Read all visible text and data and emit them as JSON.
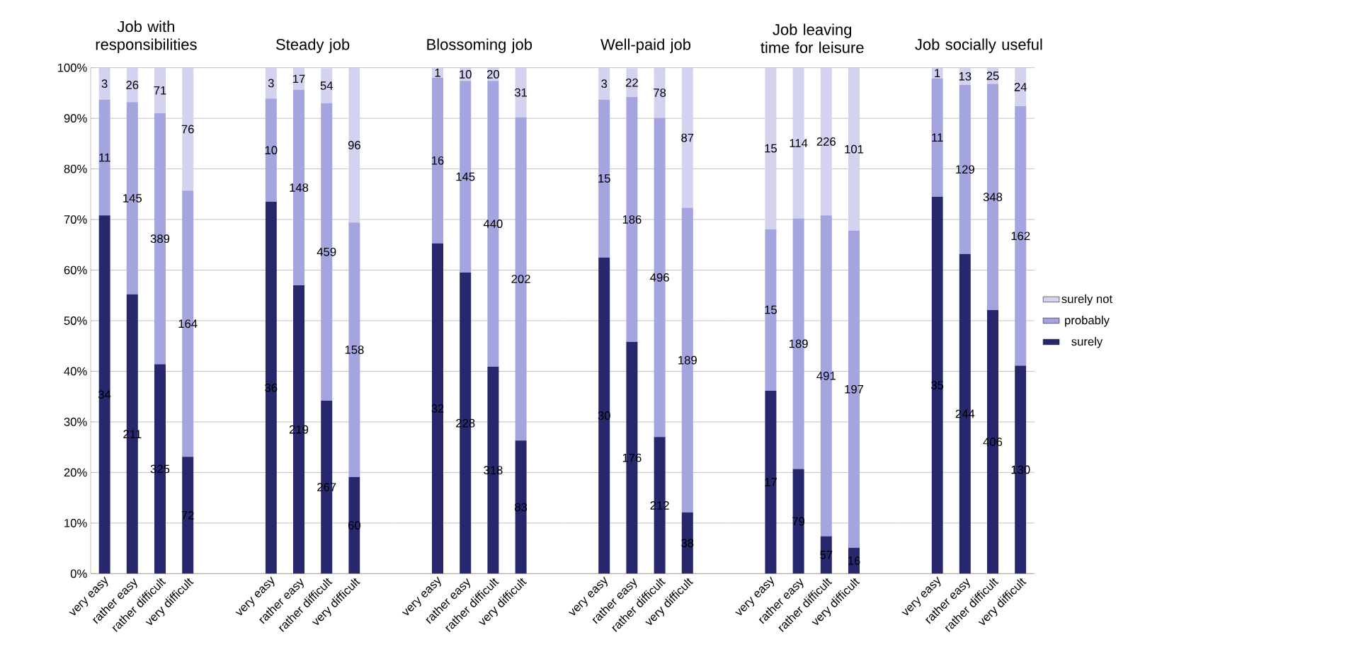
{
  "chart_data": [
    {
      "type": "bar",
      "stacked": true,
      "title": "Job with responsibilities",
      "categories": [
        "very easy",
        "rather easy",
        "rather difficult",
        "very difficult"
      ],
      "ylim": [
        0,
        100
      ],
      "yticks": [
        {
          "value": 0,
          "label": "0%"
        },
        {
          "value": 10,
          "label": "10%"
        },
        {
          "value": 20,
          "label": "20%"
        },
        {
          "value": 30,
          "label": "30%"
        },
        {
          "value": 40,
          "label": "40%"
        },
        {
          "value": 50,
          "label": "50%"
        },
        {
          "value": 60,
          "label": "60%"
        },
        {
          "value": 70,
          "label": "70%"
        },
        {
          "value": 80,
          "label": "80%"
        },
        {
          "value": 90,
          "label": "90%"
        },
        {
          "value": 100,
          "label": "100%"
        }
      ],
      "grid": "y",
      "series": [
        {
          "color": "#27276e",
          "values": [
            70.8,
            55.2,
            41.4,
            23.1
          ]
        },
        {
          "color": "#a4a4df",
          "values": [
            22.9,
            38.0,
            49.6,
            52.6
          ]
        },
        {
          "color": "#d3d3f0",
          "values": [
            6.3,
            6.8,
            9.0,
            24.3
          ]
        }
      ],
      "annotations": [
        "34",
        "211",
        "325",
        "72",
        "11",
        "145",
        "389",
        "164",
        "3",
        "26",
        "71",
        "76"
      ]
    },
    {
      "type": "bar",
      "stacked": true,
      "title": "Steady job",
      "categories": [
        "very easy",
        "rather easy",
        "rather difficult",
        "very difficult"
      ],
      "ylim": [
        0,
        100
      ],
      "yticks": [
        0,
        10,
        20,
        30,
        40,
        50,
        60,
        70,
        80,
        90,
        100
      ],
      "grid": "y",
      "tick_labels": "x",
      "series": [
        {
          "color": "#27276e",
          "values": [
            73.5,
            57.0,
            34.2,
            19.1
          ]
        },
        {
          "color": "#a4a4df",
          "values": [
            20.4,
            38.6,
            58.8,
            50.3
          ]
        },
        {
          "color": "#d3d3f0",
          "values": [
            6.1,
            4.4,
            6.9,
            30.6
          ]
        }
      ],
      "annotations": [
        "36",
        "219",
        "267",
        "60",
        "10",
        "148",
        "459",
        "158",
        "3",
        "17",
        "54",
        "96"
      ]
    },
    {
      "type": "bar",
      "stacked": true,
      "title": "Blossoming job",
      "categories": [
        "very easy",
        "rather easy",
        "rather difficult",
        "very difficult"
      ],
      "ylim": [
        0,
        100
      ],
      "yticks": [
        0,
        10,
        20,
        30,
        40,
        50,
        60,
        70,
        80,
        90,
        100
      ],
      "grid": "y",
      "tick_labels": "x",
      "series": [
        {
          "color": "#27276e",
          "values": [
            65.3,
            59.5,
            40.9,
            26.3
          ]
        },
        {
          "color": "#a4a4df",
          "values": [
            32.7,
            37.9,
            56.5,
            63.9
          ]
        },
        {
          "color": "#d3d3f0",
          "values": [
            2.0,
            2.6,
            2.6,
            9.8
          ]
        }
      ],
      "annotations": [
        "32",
        "228",
        "318",
        "83",
        "16",
        "145",
        "440",
        "202",
        "1",
        "10",
        "20",
        "31"
      ]
    },
    {
      "type": "bar",
      "stacked": true,
      "title": "Well-paid job",
      "categories": [
        "very easy",
        "rather easy",
        "rather difficult",
        "very difficult"
      ],
      "ylim": [
        0,
        100
      ],
      "yticks": [
        0,
        10,
        20,
        30,
        40,
        50,
        60,
        70,
        80,
        90,
        100
      ],
      "grid": "y",
      "tick_labels": "x",
      "series": [
        {
          "color": "#27276e",
          "values": [
            62.5,
            45.8,
            27.0,
            12.1
          ]
        },
        {
          "color": "#a4a4df",
          "values": [
            31.2,
            48.4,
            63.1,
            60.2
          ]
        },
        {
          "color": "#d3d3f0",
          "values": [
            6.3,
            5.7,
            9.9,
            27.7
          ]
        }
      ],
      "annotations": [
        "30",
        "176",
        "212",
        "38",
        "15",
        "186",
        "496",
        "189",
        "3",
        "22",
        "78",
        "87"
      ]
    },
    {
      "type": "bar",
      "stacked": true,
      "title": "Job leaving time for leisure",
      "categories": [
        "very easy",
        "rather easy",
        "rather difficult",
        "very difficult"
      ],
      "ylim": [
        0,
        100
      ],
      "yticks": [
        0,
        10,
        20,
        30,
        40,
        50,
        60,
        70,
        80,
        90,
        100
      ],
      "grid": "y",
      "tick_labels": "x",
      "series": [
        {
          "color": "#27276e",
          "values": [
            36.2,
            20.7,
            7.4,
            5.1
          ]
        },
        {
          "color": "#a4a4df",
          "values": [
            31.9,
            49.5,
            63.4,
            62.7
          ]
        },
        {
          "color": "#d3d3f0",
          "values": [
            31.9,
            29.8,
            29.2,
            32.2
          ]
        }
      ],
      "annotations": [
        "17",
        "79",
        "57",
        "16",
        "15",
        "189",
        "491",
        "197",
        "15",
        "114",
        "226",
        "101"
      ]
    },
    {
      "type": "bar",
      "stacked": true,
      "title": "Job socially useful",
      "categories": [
        "very easy",
        "rather easy",
        "rather difficult",
        "very difficult"
      ],
      "ylim": [
        0,
        100
      ],
      "yticks": [
        0,
        10,
        20,
        30,
        40,
        50,
        60,
        70,
        80,
        90,
        100
      ],
      "grid": "y",
      "tick_labels": "x",
      "legend": "right",
      "series": [
        {
          "name": "surely",
          "color": "#27276e",
          "values": [
            74.5,
            63.2,
            52.1,
            41.1
          ]
        },
        {
          "name": "probably",
          "color": "#a4a4df",
          "values": [
            23.4,
            33.4,
            44.7,
            51.3
          ]
        },
        {
          "name": "surely not",
          "color": "#d3d3f0",
          "values": [
            2.1,
            3.4,
            3.2,
            7.6
          ]
        }
      ],
      "annotations": [
        "35",
        "244",
        "406",
        "130",
        "11",
        "129",
        "348",
        "162",
        "1",
        "13",
        "25",
        "24"
      ]
    }
  ]
}
